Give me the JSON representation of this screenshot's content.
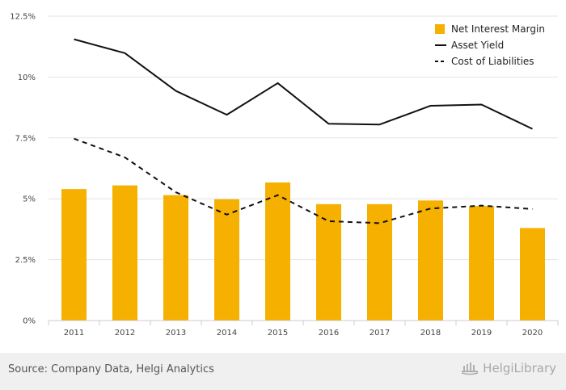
{
  "chart_data": {
    "type": "bar",
    "categories": [
      "2011",
      "2012",
      "2013",
      "2014",
      "2015",
      "2016",
      "2017",
      "2018",
      "2019",
      "2020"
    ],
    "series": [
      {
        "name": "Net Interest Margin",
        "type": "bar",
        "color": "#f5b000",
        "values": [
          5.4,
          5.55,
          5.15,
          4.98,
          5.67,
          4.78,
          4.78,
          4.93,
          4.7,
          3.8
        ]
      },
      {
        "name": "Asset Yield",
        "type": "line",
        "style": "solid",
        "color": "#111111",
        "values": [
          11.55,
          10.98,
          9.43,
          8.45,
          9.75,
          8.08,
          8.05,
          8.82,
          8.87,
          7.87
        ]
      },
      {
        "name": "Cost of Liabilities",
        "type": "line",
        "style": "dashed",
        "color": "#111111",
        "values": [
          7.47,
          6.7,
          5.27,
          4.35,
          5.15,
          4.08,
          4.0,
          4.6,
          4.72,
          4.58
        ]
      }
    ],
    "yticks": [
      "0%",
      "2.5%",
      "5%",
      "7.5%",
      "10%",
      "12.5%"
    ],
    "ylim": [
      0,
      12.5
    ],
    "grid": true,
    "legend_position": "top-right"
  },
  "footer": {
    "source": "Source: Company Data, Helgi Analytics",
    "brand": "HelgiLibrary",
    "logo_icon": "helgi-logo-icon"
  }
}
